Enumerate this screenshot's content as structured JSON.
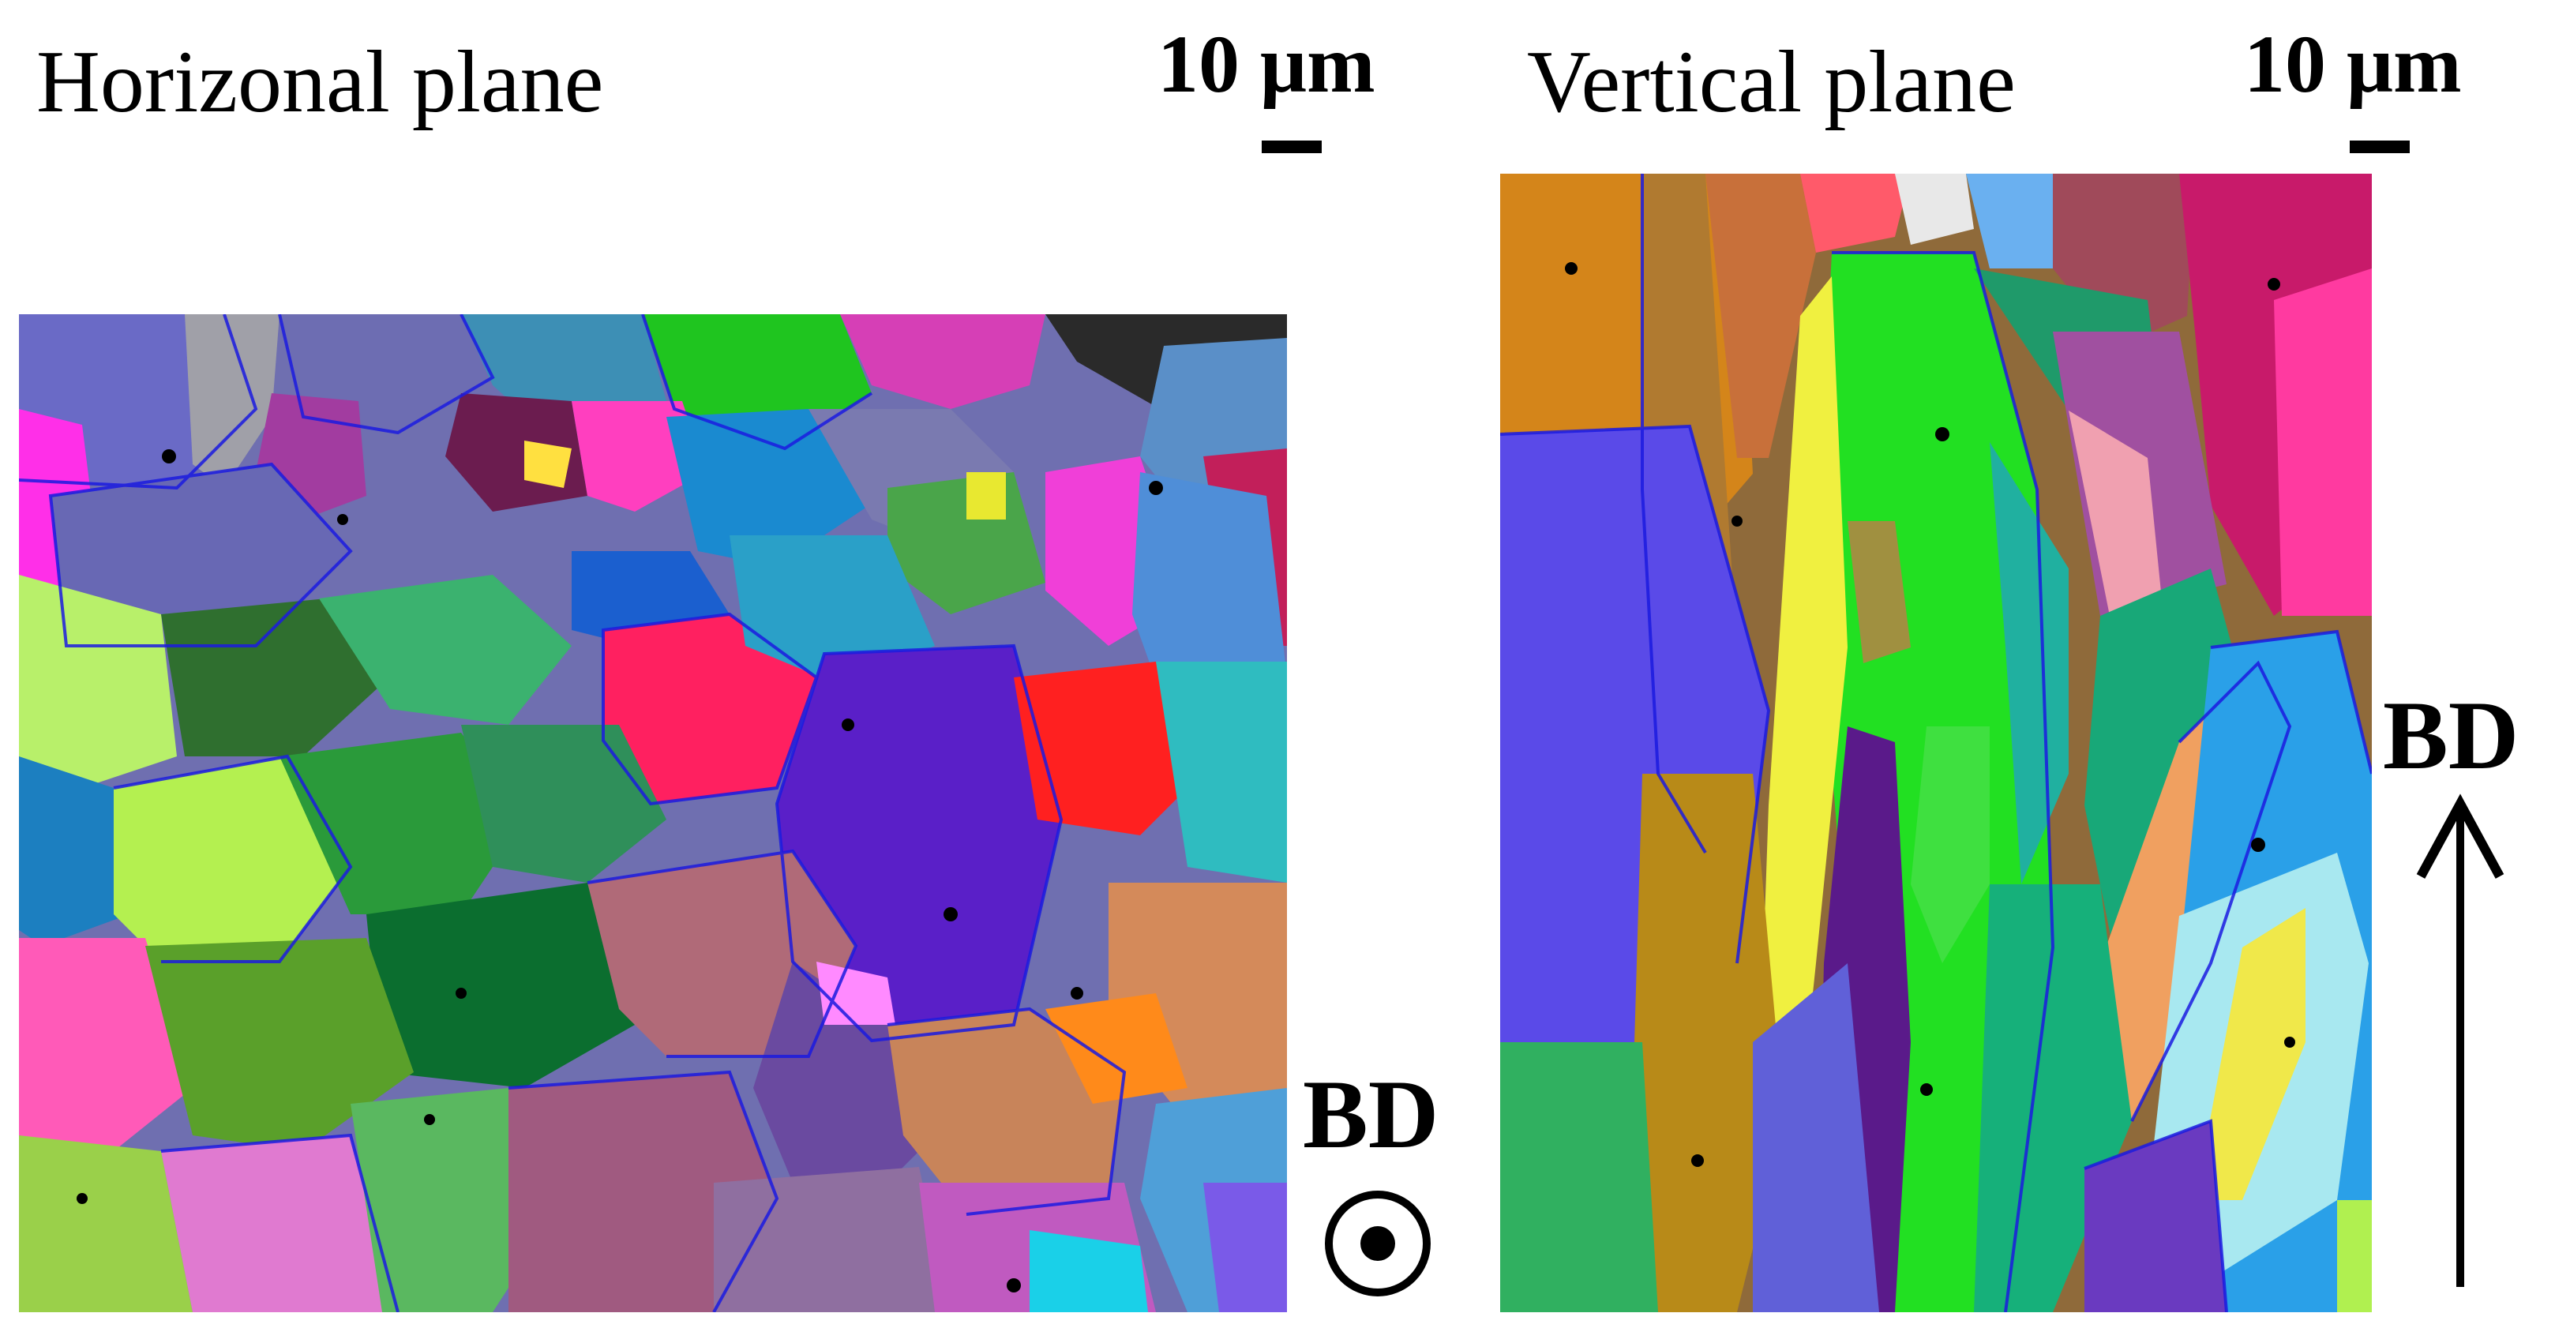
{
  "panels": {
    "horizontal": {
      "title": "Horizonal plane",
      "scale_label": "10 μm"
    },
    "vertical": {
      "title": "Vertical plane",
      "scale_label": "10 μm"
    }
  },
  "build_direction": {
    "label_horizontal": "BD",
    "label_vertical": "BD",
    "horizontal_symbol": "circle-dot-out-of-plane-icon",
    "vertical_symbol": "up-arrow-icon"
  },
  "colors": {
    "grain_boundary": "#1b1be0",
    "background": "#ffffff"
  }
}
